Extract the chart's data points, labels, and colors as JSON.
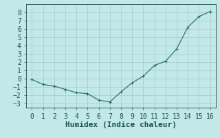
{
  "x": [
    0,
    1,
    2,
    3,
    4,
    5,
    6,
    7,
    8,
    9,
    10,
    11,
    12,
    13,
    14,
    15,
    16
  ],
  "y": [
    -0.1,
    -0.7,
    -0.9,
    -1.3,
    -1.7,
    -1.8,
    -2.6,
    -2.8,
    -1.6,
    -0.5,
    0.3,
    1.6,
    2.1,
    3.6,
    6.2,
    7.5,
    8.1
  ],
  "line_color": "#1a6b5e",
  "marker": "+",
  "bg_color": "#c2e8e8",
  "grid_color": "#a8d0d0",
  "xlabel": "Humidex (Indice chaleur)",
  "ylim": [
    -3.5,
    9.0
  ],
  "xlim": [
    -0.5,
    16.5
  ],
  "yticks": [
    -3,
    -2,
    -1,
    0,
    1,
    2,
    3,
    4,
    5,
    6,
    7,
    8
  ],
  "xticks": [
    0,
    1,
    2,
    3,
    4,
    5,
    6,
    7,
    8,
    9,
    10,
    11,
    12,
    13,
    14,
    15,
    16
  ],
  "font_color": "#1a5050",
  "tick_font_size": 7,
  "label_font_size": 8
}
